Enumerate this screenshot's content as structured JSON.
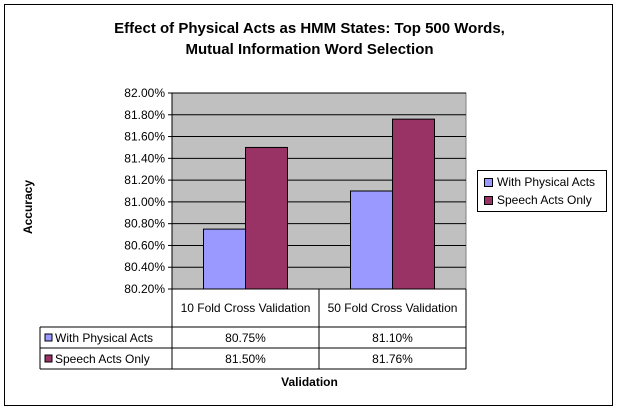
{
  "chart_data": {
    "type": "bar",
    "title_line1": "Effect of Physical Acts as HMM States: Top 500 Words,",
    "title_line2": "Mutual Information Word Selection",
    "xlabel": "Validation",
    "ylabel": "Accuracy",
    "categories": [
      "10 Fold Cross Validation",
      "50 Fold Cross Validation"
    ],
    "series": [
      {
        "name": "With Physical Acts",
        "values": [
          80.75,
          81.1
        ],
        "labels": [
          "80.75%",
          "81.10%"
        ],
        "color": "#9999ff"
      },
      {
        "name": "Speech Acts Only",
        "values": [
          81.5,
          81.76
        ],
        "labels": [
          "81.50%",
          "81.76%"
        ],
        "color": "#993366"
      }
    ],
    "ylim": [
      80.2,
      82.0
    ],
    "yticks": [
      "80.20%",
      "80.40%",
      "80.60%",
      "80.80%",
      "81.00%",
      "81.20%",
      "81.40%",
      "81.60%",
      "81.80%",
      "82.00%"
    ],
    "ytick_values": [
      80.2,
      80.4,
      80.6,
      80.8,
      81.0,
      81.2,
      81.4,
      81.6,
      81.8,
      82.0
    ],
    "plot_background": "#c0c0c0",
    "grid": true,
    "legend_position": "right",
    "data_table": true
  }
}
